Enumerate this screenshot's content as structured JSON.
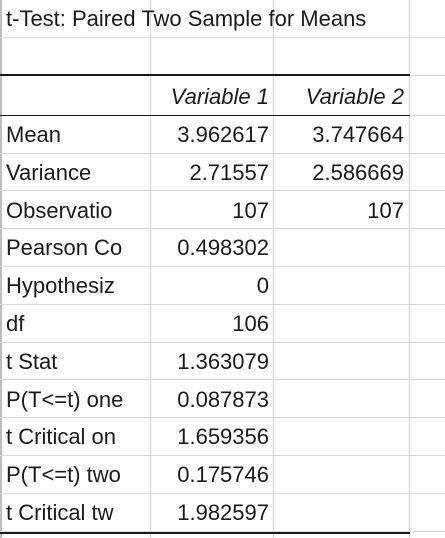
{
  "title": "t-Test: Paired Two Sample for Means",
  "header": {
    "col1": "",
    "col2": "Variable 1",
    "col3": "Variable 2"
  },
  "rows": [
    {
      "label": "Mean",
      "v1": "3.962617",
      "v2": "3.747664"
    },
    {
      "label": "Variance",
      "v1": "2.71557",
      "v2": "2.586669"
    },
    {
      "label": "Observatio",
      "v1": "107",
      "v2": "107"
    },
    {
      "label": "Pearson Co",
      "v1": "0.498302",
      "v2": ""
    },
    {
      "label": "Hypothesiz",
      "v1": "0",
      "v2": ""
    },
    {
      "label": "df",
      "v1": "106",
      "v2": ""
    },
    {
      "label": "t Stat",
      "v1": "1.363079",
      "v2": ""
    },
    {
      "label": "P(T<=t) one",
      "v1": "0.087873",
      "v2": ""
    },
    {
      "label": "t Critical on",
      "v1": "1.659356",
      "v2": ""
    },
    {
      "label": "P(T<=t) two",
      "v1": "0.175746",
      "v2": ""
    },
    {
      "label": "t Critical tw",
      "v1": "1.982597",
      "v2": ""
    }
  ]
}
